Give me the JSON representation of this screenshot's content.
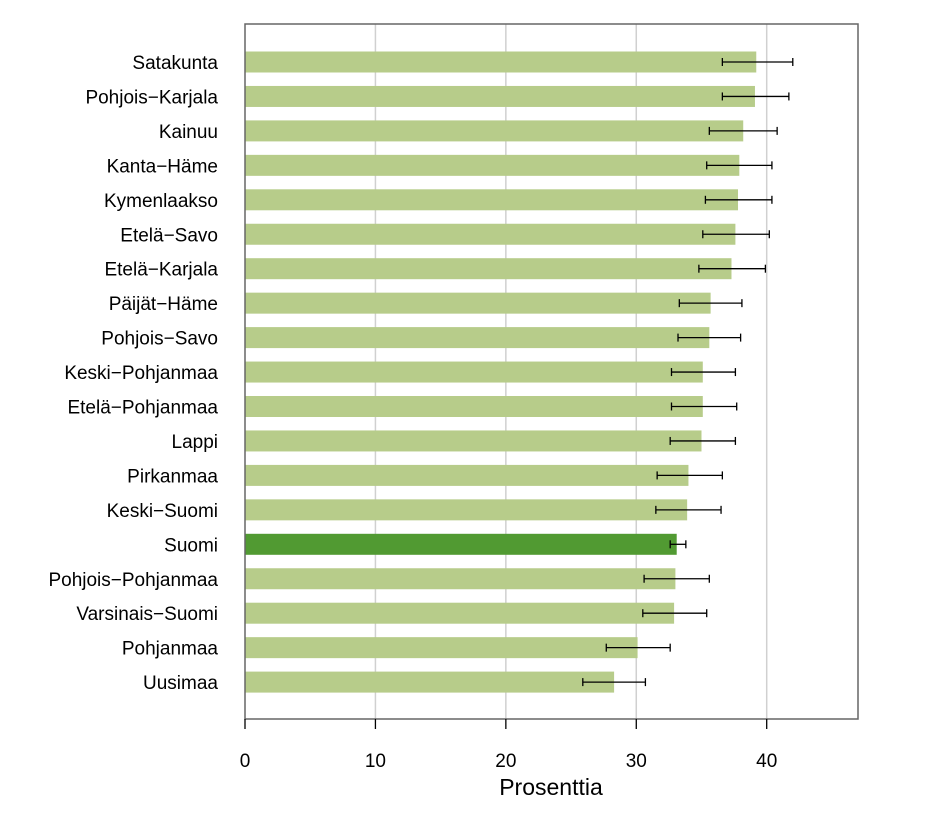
{
  "chart_data": {
    "type": "bar",
    "orientation": "horizontal",
    "xlabel": "Prosenttia",
    "ylabel": "",
    "title": "",
    "xlim": [
      0,
      47
    ],
    "xticks": [
      0,
      10,
      20,
      30,
      40
    ],
    "grid": "vertical",
    "categories": [
      "Satakunta",
      "Pohjois-Karjala",
      "Kainuu",
      "Kanta-Häme",
      "Kymenlaakso",
      "Etelä-Savo",
      "Etelä-Karjala",
      "Päijät-Häme",
      "Pohjois-Savo",
      "Keski-Pohjanmaa",
      "Etelä-Pohjanmaa",
      "Lappi",
      "Pirkanmaa",
      "Keski-Suomi",
      "Suomi",
      "Pohjois-Pohjanmaa",
      "Varsinais-Suomi",
      "Pohjanmaa",
      "Uusimaa"
    ],
    "values": [
      39.2,
      39.1,
      38.2,
      37.9,
      37.8,
      37.6,
      37.3,
      35.7,
      35.6,
      35.1,
      35.1,
      35.0,
      34.0,
      33.9,
      33.1,
      33.0,
      32.9,
      30.1,
      28.3
    ],
    "ci_low": [
      36.6,
      36.6,
      35.6,
      35.4,
      35.3,
      35.1,
      34.8,
      33.3,
      33.2,
      32.7,
      32.7,
      32.6,
      31.6,
      31.5,
      32.6,
      30.6,
      30.5,
      27.7,
      25.9
    ],
    "ci_high": [
      42.0,
      41.7,
      40.8,
      40.4,
      40.4,
      40.2,
      39.9,
      38.1,
      38.0,
      37.6,
      37.7,
      37.6,
      36.6,
      36.5,
      33.8,
      35.6,
      35.4,
      32.6,
      30.7
    ],
    "highlight": "Suomi",
    "colors": {
      "bar": "#b7cc8a",
      "highlight": "#519a32",
      "grid": "#d0d0d0",
      "axis": "#666666"
    }
  }
}
